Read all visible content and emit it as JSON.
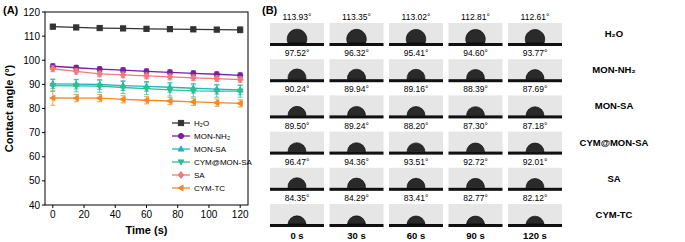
{
  "chart_data": {
    "type": "line",
    "title": "(A)",
    "x_label": "Time (s)",
    "y_label": "Contact angle (°)",
    "x": [
      0,
      15,
      30,
      45,
      60,
      75,
      90,
      105,
      120
    ],
    "xlim": [
      -5,
      125
    ],
    "xticks": [
      0,
      20,
      40,
      60,
      80,
      100,
      120
    ],
    "ylim": [
      40,
      120
    ],
    "yticks": [
      40,
      50,
      60,
      70,
      80,
      90,
      100,
      110,
      120
    ],
    "grid": false,
    "legend": "lower right",
    "series": [
      {
        "name": "H₂O",
        "color": "#333333",
        "marker": "square",
        "values": [
          113.93,
          113.6,
          113.35,
          113.2,
          113.02,
          112.9,
          112.81,
          112.7,
          112.61
        ],
        "errors": [
          0.8,
          0.8,
          0.8,
          0.8,
          0.8,
          0.8,
          0.8,
          0.8,
          1.2
        ]
      },
      {
        "name": "MON-NH₂",
        "color": "#7b1fa2",
        "marker": "circle",
        "values": [
          97.52,
          96.9,
          96.32,
          95.9,
          95.41,
          95.0,
          94.6,
          94.2,
          93.77
        ],
        "errors": [
          1.0,
          1.0,
          1.0,
          1.0,
          1.0,
          1.0,
          1.0,
          1.0,
          1.0
        ]
      },
      {
        "name": "MON-SA",
        "color": "#1fb5c7",
        "marker": "triangle",
        "values": [
          90.24,
          90.1,
          89.94,
          89.5,
          89.16,
          88.8,
          88.39,
          88.0,
          87.69
        ],
        "errors": [
          2.0,
          2.0,
          2.0,
          2.0,
          2.0,
          2.0,
          2.0,
          2.0,
          2.0
        ]
      },
      {
        "name": "CYM@MON-SA",
        "color": "#2fbf8f",
        "marker": "triangle-down",
        "values": [
          89.5,
          89.4,
          89.24,
          88.7,
          88.2,
          87.7,
          87.3,
          87.2,
          87.18
        ],
        "errors": [
          2.5,
          2.5,
          2.5,
          2.5,
          2.5,
          2.5,
          2.5,
          2.5,
          2.5
        ]
      },
      {
        "name": "SA",
        "color": "#f07b7b",
        "marker": "diamond",
        "values": [
          96.47,
          95.4,
          94.36,
          93.9,
          93.51,
          93.1,
          92.72,
          92.4,
          92.01
        ],
        "errors": [
          1.2,
          1.2,
          1.2,
          1.2,
          1.2,
          1.2,
          1.2,
          1.2,
          1.2
        ]
      },
      {
        "name": "CYM-TC",
        "color": "#f08a24",
        "marker": "triangle-left",
        "values": [
          84.35,
          84.3,
          84.29,
          83.8,
          83.41,
          83.1,
          82.77,
          82.4,
          82.12
        ],
        "errors": [
          3.0,
          1.5,
          1.5,
          1.5,
          1.5,
          1.5,
          1.5,
          1.5,
          1.5
        ]
      }
    ]
  },
  "image_panel": {
    "label": "(B)",
    "columns": [
      "0 s",
      "30 s",
      "60 s",
      "90 s",
      "120 s"
    ],
    "rows": [
      {
        "name": "H₂O",
        "values": [
          113.93,
          113.35,
          113.02,
          112.81,
          112.61
        ],
        "value_labels": [
          "113.93°",
          "113.35°",
          "113.02°",
          "112.81°",
          "112.61°"
        ]
      },
      {
        "name": "MON-NH₂",
        "values": [
          97.52,
          96.32,
          95.41,
          94.6,
          93.77
        ],
        "value_labels": [
          "97.52°",
          "96.32°",
          "95.41°",
          "94.60°",
          "93.77°"
        ]
      },
      {
        "name": "MON-SA",
        "values": [
          90.24,
          89.94,
          89.16,
          88.39,
          87.69
        ],
        "value_labels": [
          "90.24°",
          "89.94°",
          "89.16°",
          "88.39°",
          "87.69°"
        ]
      },
      {
        "name": "CYM@MON-SA",
        "values": [
          89.5,
          89.24,
          88.2,
          87.3,
          87.18
        ],
        "value_labels": [
          "89.50°",
          "89.24°",
          "88.20°",
          "87.30°",
          "87.18°"
        ]
      },
      {
        "name": "SA",
        "values": [
          96.47,
          94.36,
          93.51,
          92.72,
          92.01
        ],
        "value_labels": [
          "96.47°",
          "94.36°",
          "93.51°",
          "92.72°",
          "92.01°"
        ]
      },
      {
        "name": "CYM-TC",
        "values": [
          84.35,
          84.29,
          83.41,
          82.77,
          82.12
        ],
        "value_labels": [
          "84.35°",
          "84.29°",
          "83.41°",
          "82.77°",
          "82.12°"
        ]
      }
    ]
  }
}
